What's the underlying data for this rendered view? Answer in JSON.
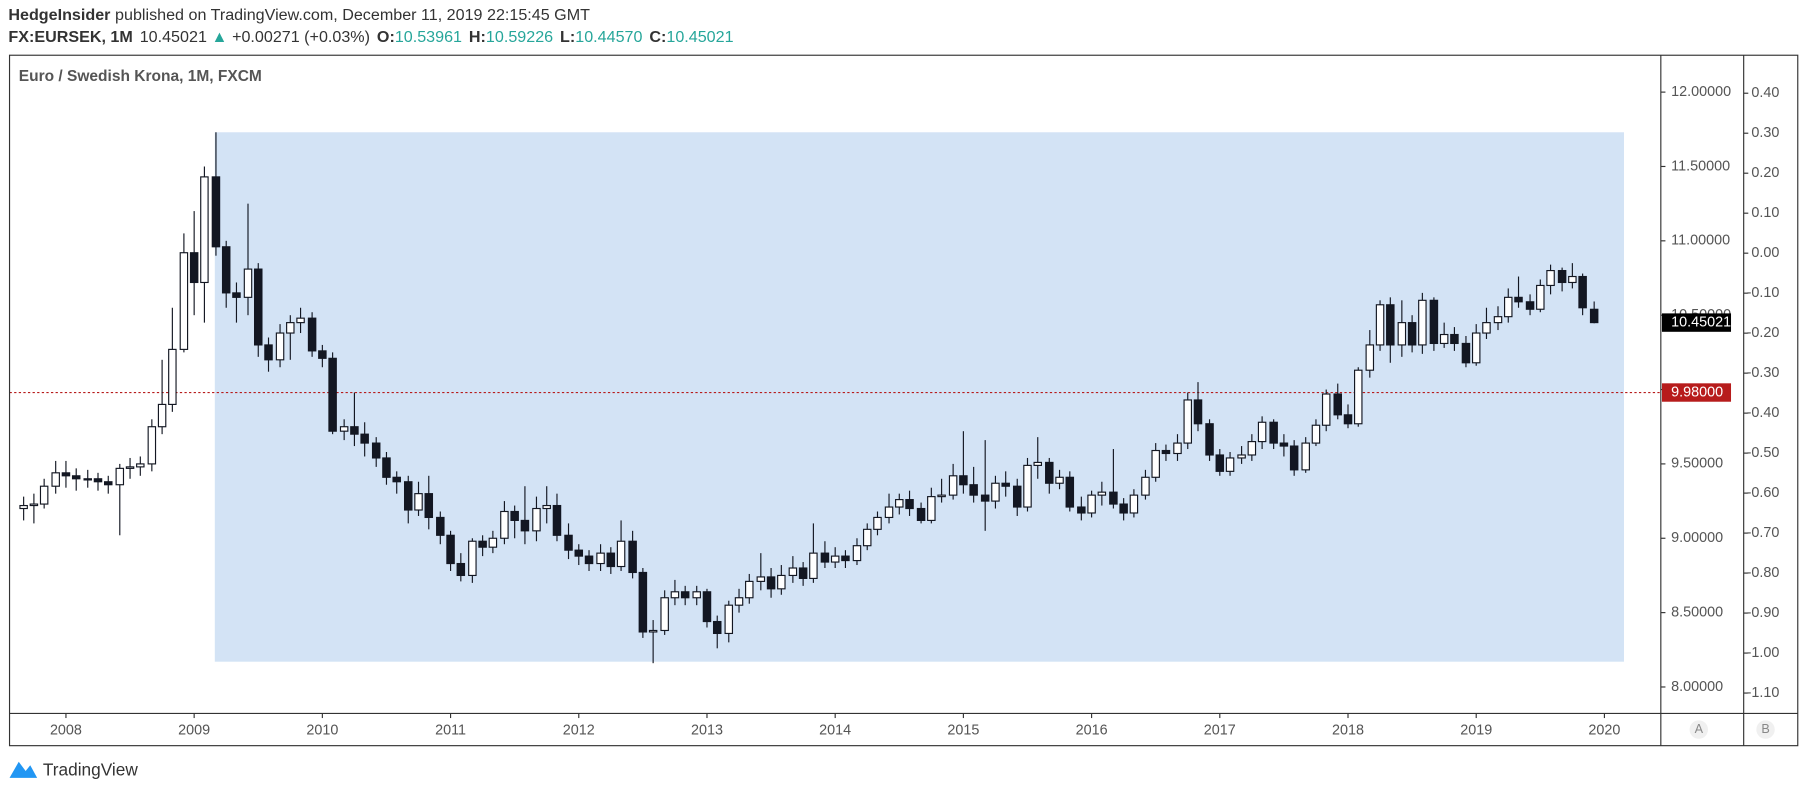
{
  "header": {
    "author": "HedgeInsider",
    "published": "published on TradingView.com, December 11, 2019 22:15:45 GMT",
    "symbol": "FX:EURSEK, 1M",
    "last": "10.45021",
    "arrow": "▲",
    "change": "+0.00271 (+0.03%)",
    "ohlc": [
      {
        "label": "O:",
        "value": "10.53961"
      },
      {
        "label": "H:",
        "value": "10.59226"
      },
      {
        "label": "L:",
        "value": "10.44570"
      },
      {
        "label": "C:",
        "value": "10.45021"
      }
    ]
  },
  "chart_data": {
    "type": "candlestick",
    "title": "Euro / Swedish Krona, 1M, FXCM",
    "x": [
      2007.67,
      2007.75,
      2007.83,
      2007.92,
      2008,
      2008.08,
      2008.17,
      2008.25,
      2008.33,
      2008.42,
      2008.5,
      2008.58,
      2008.67,
      2008.75,
      2008.83,
      2008.92,
      2009,
      2009.08,
      2009.17,
      2009.25,
      2009.33,
      2009.42,
      2009.5,
      2009.58,
      2009.67,
      2009.75,
      2009.83,
      2009.92,
      2010,
      2010.08,
      2010.17,
      2010.25,
      2010.33,
      2010.42,
      2010.5,
      2010.58,
      2010.67,
      2010.75,
      2010.83,
      2010.92,
      2011,
      2011.08,
      2011.17,
      2011.25,
      2011.33,
      2011.42,
      2011.5,
      2011.58,
      2011.67,
      2011.75,
      2011.83,
      2011.92,
      2012,
      2012.08,
      2012.17,
      2012.25,
      2012.33,
      2012.42,
      2012.5,
      2012.58,
      2012.67,
      2012.75,
      2012.83,
      2012.92,
      2013,
      2013.08,
      2013.17,
      2013.25,
      2013.33,
      2013.42,
      2013.5,
      2013.58,
      2013.67,
      2013.75,
      2013.83,
      2013.92,
      2014,
      2014.08,
      2014.17,
      2014.25,
      2014.33,
      2014.42,
      2014.5,
      2014.58,
      2014.67,
      2014.75,
      2014.83,
      2014.92,
      2015,
      2015.08,
      2015.17,
      2015.25,
      2015.33,
      2015.42,
      2015.5,
      2015.58,
      2015.67,
      2015.75,
      2015.83,
      2015.92,
      2016,
      2016.08,
      2016.17,
      2016.25,
      2016.33,
      2016.42,
      2016.5,
      2016.58,
      2016.67,
      2016.75,
      2016.83,
      2016.92,
      2017,
      2017.08,
      2017.17,
      2017.25,
      2017.33,
      2017.42,
      2017.5,
      2017.58,
      2017.67,
      2017.75,
      2017.83,
      2017.92,
      2018,
      2018.08,
      2018.17,
      2018.25,
      2018.33,
      2018.42,
      2018.5,
      2018.58,
      2018.67,
      2018.75,
      2018.83,
      2018.92,
      2019,
      2019.08,
      2019.17,
      2019.25,
      2019.33,
      2019.42,
      2019.5,
      2019.58,
      2019.67,
      2019.75,
      2019.83,
      2019.92
    ],
    "open": [
      9.2,
      9.22,
      9.23,
      9.35,
      9.44,
      9.42,
      9.4,
      9.4,
      9.38,
      9.36,
      9.47,
      9.48,
      9.5,
      9.75,
      9.9,
      10.27,
      10.92,
      10.72,
      11.43,
      10.96,
      10.65,
      10.62,
      10.81,
      10.3,
      10.2,
      10.38,
      10.45,
      10.48,
      10.26,
      10.21,
      9.72,
      9.75,
      9.7,
      9.64,
      9.54,
      9.41,
      9.38,
      9.19,
      9.3,
      9.14,
      9.02,
      8.83,
      8.75,
      8.98,
      8.94,
      9.0,
      9.18,
      9.12,
      9.05,
      9.2,
      9.22,
      9.02,
      8.92,
      8.88,
      8.83,
      8.9,
      8.81,
      8.98,
      8.77,
      8.37,
      8.38,
      8.6,
      8.64,
      8.6,
      8.64,
      8.44,
      8.36,
      8.55,
      8.6,
      8.71,
      8.74,
      8.66,
      8.75,
      8.8,
      8.73,
      8.9,
      8.84,
      8.88,
      8.85,
      8.95,
      9.06,
      9.14,
      9.21,
      9.26,
      9.2,
      9.12,
      9.28,
      9.29,
      9.42,
      9.36,
      9.29,
      9.25,
      9.37,
      9.35,
      9.21,
      9.49,
      9.51,
      9.37,
      9.41,
      9.21,
      9.17,
      9.29,
      9.31,
      9.23,
      9.17,
      9.29,
      9.41,
      9.59,
      9.57,
      9.64,
      9.93,
      9.77,
      9.56,
      9.45,
      9.54,
      9.56,
      9.65,
      9.78,
      9.64,
      9.62,
      9.46,
      9.64,
      9.76,
      9.97,
      9.83,
      9.77,
      10.13,
      10.3,
      10.57,
      10.3,
      10.45,
      10.3,
      10.6,
      10.31,
      10.37,
      10.31,
      10.18,
      10.38,
      10.45,
      10.49,
      10.62,
      10.59,
      10.54,
      10.7,
      10.8,
      10.72,
      10.76,
      10.53961
    ],
    "high": [
      9.28,
      9.3,
      9.4,
      9.52,
      9.52,
      9.47,
      9.46,
      9.44,
      9.42,
      9.5,
      9.54,
      9.55,
      9.8,
      10.2,
      10.55,
      11.05,
      11.2,
      11.5,
      11.73,
      11.0,
      10.72,
      11.25,
      10.85,
      10.35,
      10.44,
      10.5,
      10.55,
      10.52,
      10.3,
      10.25,
      9.8,
      9.98,
      9.78,
      9.68,
      9.58,
      9.45,
      9.42,
      9.38,
      9.42,
      9.18,
      9.05,
      8.9,
      9.0,
      9.02,
      9.05,
      9.25,
      9.22,
      9.35,
      9.28,
      9.35,
      9.3,
      9.1,
      8.96,
      8.92,
      8.96,
      8.94,
      9.12,
      9.05,
      8.8,
      8.45,
      8.65,
      8.72,
      8.68,
      8.68,
      8.66,
      8.48,
      8.58,
      8.66,
      8.76,
      8.9,
      8.8,
      8.82,
      8.88,
      8.84,
      9.1,
      8.98,
      8.94,
      8.92,
      9.0,
      9.1,
      9.18,
      9.3,
      9.3,
      9.32,
      9.24,
      9.34,
      9.4,
      9.5,
      9.72,
      9.48,
      9.66,
      9.42,
      9.45,
      9.4,
      9.54,
      9.68,
      9.54,
      9.46,
      9.45,
      9.28,
      9.32,
      9.38,
      9.6,
      9.27,
      9.33,
      9.46,
      9.64,
      9.63,
      9.7,
      9.98,
      10.05,
      9.8,
      9.6,
      9.58,
      9.62,
      9.7,
      9.82,
      9.8,
      9.7,
      9.66,
      9.68,
      9.8,
      10.0,
      10.04,
      9.9,
      10.15,
      10.4,
      10.6,
      10.62,
      10.6,
      10.5,
      10.65,
      10.62,
      10.45,
      10.42,
      10.36,
      10.44,
      10.55,
      10.56,
      10.68,
      10.76,
      10.64,
      10.74,
      10.84,
      10.82,
      10.85,
      10.78,
      10.59226
    ],
    "low": [
      9.12,
      9.1,
      9.2,
      9.3,
      9.34,
      9.32,
      9.34,
      9.32,
      9.3,
      9.02,
      9.4,
      9.42,
      9.45,
      9.7,
      9.85,
      10.25,
      10.5,
      10.45,
      10.9,
      10.55,
      10.45,
      10.5,
      10.22,
      10.12,
      10.15,
      10.2,
      10.38,
      10.22,
      10.15,
      9.7,
      9.66,
      9.62,
      9.55,
      9.48,
      9.36,
      9.3,
      9.1,
      9.15,
      9.06,
      8.96,
      8.78,
      8.71,
      8.7,
      8.88,
      8.9,
      8.96,
      9.0,
      8.96,
      8.98,
      9.1,
      8.98,
      8.86,
      8.82,
      8.78,
      8.78,
      8.76,
      8.78,
      8.73,
      8.33,
      8.16,
      8.35,
      8.55,
      8.55,
      8.55,
      8.4,
      8.26,
      8.3,
      8.5,
      8.56,
      8.65,
      8.6,
      8.62,
      8.7,
      8.68,
      8.7,
      8.8,
      8.8,
      8.8,
      8.82,
      8.92,
      9.02,
      9.1,
      9.16,
      9.15,
      9.1,
      9.1,
      9.24,
      9.26,
      9.3,
      9.24,
      9.05,
      9.2,
      9.28,
      9.15,
      9.18,
      9.4,
      9.3,
      9.33,
      9.18,
      9.12,
      9.14,
      9.22,
      9.2,
      9.12,
      9.14,
      9.26,
      9.38,
      9.52,
      9.52,
      9.6,
      9.72,
      9.52,
      9.42,
      9.42,
      9.5,
      9.52,
      9.6,
      9.6,
      9.55,
      9.42,
      9.44,
      9.62,
      9.72,
      9.8,
      9.74,
      9.75,
      10.08,
      10.26,
      10.18,
      10.22,
      10.25,
      10.24,
      10.26,
      10.28,
      10.26,
      10.15,
      10.16,
      10.34,
      10.4,
      10.45,
      10.55,
      10.5,
      10.52,
      10.64,
      10.66,
      10.68,
      10.5,
      10.4457
    ],
    "close": [
      9.22,
      9.23,
      9.35,
      9.44,
      9.42,
      9.4,
      9.4,
      9.38,
      9.36,
      9.47,
      9.48,
      9.5,
      9.75,
      9.9,
      10.27,
      10.92,
      10.72,
      11.43,
      10.96,
      10.65,
      10.62,
      10.81,
      10.3,
      10.2,
      10.38,
      10.45,
      10.48,
      10.26,
      10.21,
      9.72,
      9.75,
      9.7,
      9.64,
      9.54,
      9.41,
      9.38,
      9.19,
      9.3,
      9.14,
      9.02,
      8.83,
      8.75,
      8.98,
      8.94,
      9.0,
      9.18,
      9.12,
      9.05,
      9.2,
      9.22,
      9.02,
      8.92,
      8.88,
      8.83,
      8.9,
      8.81,
      8.98,
      8.77,
      8.37,
      8.38,
      8.6,
      8.64,
      8.6,
      8.64,
      8.44,
      8.36,
      8.55,
      8.6,
      8.71,
      8.74,
      8.66,
      8.75,
      8.8,
      8.73,
      8.9,
      8.84,
      8.88,
      8.85,
      8.95,
      9.06,
      9.14,
      9.21,
      9.26,
      9.2,
      9.12,
      9.28,
      9.29,
      9.42,
      9.36,
      9.29,
      9.25,
      9.37,
      9.35,
      9.21,
      9.49,
      9.51,
      9.37,
      9.41,
      9.21,
      9.17,
      9.29,
      9.31,
      9.23,
      9.17,
      9.29,
      9.41,
      9.59,
      9.57,
      9.64,
      9.93,
      9.77,
      9.56,
      9.45,
      9.54,
      9.56,
      9.65,
      9.78,
      9.64,
      9.62,
      9.46,
      9.64,
      9.76,
      9.97,
      9.83,
      9.77,
      10.13,
      10.3,
      10.57,
      10.3,
      10.45,
      10.3,
      10.6,
      10.31,
      10.37,
      10.31,
      10.18,
      10.38,
      10.45,
      10.49,
      10.62,
      10.59,
      10.54,
      10.7,
      10.8,
      10.72,
      10.76,
      10.55,
      10.45021
    ],
    "up_color": "#ffffff",
    "down_color": "#131722",
    "grid": false,
    "xlim": [
      2007.56,
      2020.44
    ],
    "xticks": [
      2008,
      2009,
      2010,
      2011,
      2012,
      2013,
      2014,
      2015,
      2016,
      2017,
      2018,
      2019,
      2020
    ],
    "ylim": [
      7.822,
      12.248
    ],
    "yticks": [
      {
        "value": 8,
        "label": "8.00000"
      },
      {
        "value": 8.5,
        "label": "8.50000"
      },
      {
        "value": 9,
        "label": "9.00000"
      },
      {
        "value": 9.5,
        "label": "9.50000"
      },
      {
        "value": 10,
        "label": "10.00000"
      },
      {
        "value": 10.5,
        "label": "10.50000"
      },
      {
        "value": 11,
        "label": "11.00000"
      },
      {
        "value": 11.5,
        "label": "11.50000"
      },
      {
        "value": 12,
        "label": "12.00000"
      }
    ],
    "y2lim": [
      -1.151,
      0.495
    ],
    "y2ticks": [
      {
        "value": 0.4,
        "label": "0.40"
      },
      {
        "value": 0.3,
        "label": "0.30"
      },
      {
        "value": 0.2,
        "label": "0.20"
      },
      {
        "value": 0.1,
        "label": "0.10"
      },
      {
        "value": 0,
        "label": "0.00"
      },
      {
        "value": -0.1,
        "label": "-0.10"
      },
      {
        "value": -0.2,
        "label": "-0.20"
      },
      {
        "value": -0.3,
        "label": "-0.30"
      },
      {
        "value": -0.4,
        "label": "-0.40"
      },
      {
        "value": -0.5,
        "label": "-0.50"
      },
      {
        "value": -0.6,
        "label": "-0.60"
      },
      {
        "value": -0.7,
        "label": "-0.70"
      },
      {
        "value": -0.8,
        "label": "-0.80"
      },
      {
        "value": -0.9,
        "label": "-0.90"
      },
      {
        "value": -1,
        "label": "-1.00"
      },
      {
        "value": -1.1,
        "label": "-1.10"
      }
    ],
    "price_line": {
      "value": 9.98,
      "label": "9.98000",
      "color": "#b71c1c"
    },
    "range_box": {
      "top": 11.73,
      "bottom": 8.17,
      "color": "#d3e3f5"
    }
  },
  "footer": {
    "brand": "TradingView"
  },
  "scale_buttons": [
    "A",
    "B"
  ]
}
